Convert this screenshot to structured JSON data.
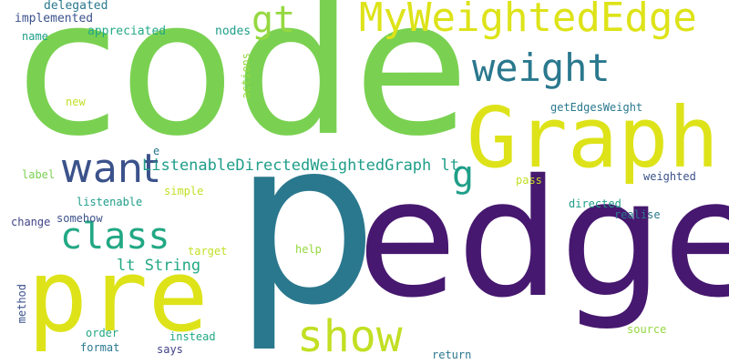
{
  "words": {
    "code": "code",
    "edge": "edge",
    "p": "p",
    "graph": "Graph",
    "pre": "pre",
    "myweightededge": "MyWeightedEdge",
    "gt": "gt",
    "weight": "weight",
    "want": "want",
    "class": "class",
    "show": "show",
    "g": "g",
    "listenable_dwg_lt": "ListenableDirectedWeightedGraph lt",
    "lt_string": "lt String",
    "implemented": "implemented",
    "delegated": "delegated",
    "name": "name",
    "appreciated": "appreciated",
    "nodes": "nodes",
    "actions": "actions",
    "new": "new",
    "getedgesweight": "getEdgesWeight",
    "e": "e",
    "label": "label",
    "simple": "simple",
    "pass": "pass",
    "weighted": "weighted",
    "listenable": "listenable",
    "directed": "directed",
    "change": "change",
    "somehow": "somehow",
    "realise": "realise",
    "target": "target",
    "help": "help",
    "method": "method",
    "order": "order",
    "instead": "instead",
    "source": "source",
    "format": "format",
    "says": "says",
    "return": "return"
  },
  "colors": {
    "purple": "#46186f",
    "teal": "#2a788e",
    "green": "#7ad151",
    "yellow_green": "#c2df23",
    "yellow": "#dde318",
    "sea_green": "#22a884",
    "navy": "#3b528b",
    "indigo": "#414487",
    "light_green": "#95d840",
    "cyan_teal": "#1f9e89"
  }
}
